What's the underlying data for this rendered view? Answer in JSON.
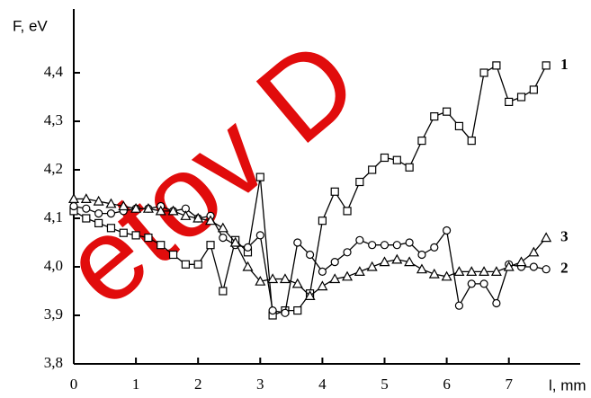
{
  "chart_data": {
    "type": "line",
    "y_label": "F, eV",
    "x_label": "l, mm",
    "watermark": "etov D",
    "x": [
      0,
      0.2,
      0.4,
      0.6,
      0.8,
      1,
      1.2,
      1.4,
      1.6,
      1.8,
      2,
      2.2,
      2.4,
      2.6,
      2.8,
      3,
      3.2,
      3.4,
      3.6,
      3.8,
      4,
      4.2,
      4.4,
      4.6,
      4.8,
      5,
      5.2,
      5.4,
      5.6,
      5.8,
      6,
      6.2,
      6.4,
      6.6,
      6.8,
      7,
      7.2,
      7.4,
      7.6
    ],
    "series": [
      {
        "name": "1",
        "color": "#000000",
        "marker": "square",
        "values": [
          4.115,
          4.1,
          4.09,
          4.08,
          4.07,
          4.065,
          4.06,
          4.045,
          4.025,
          4.005,
          4.005,
          4.045,
          3.95,
          4.055,
          4.03,
          4.185,
          3.9,
          3.91,
          3.91,
          3.945,
          4.095,
          4.155,
          4.115,
          4.175,
          4.2,
          4.225,
          4.22,
          4.205,
          4.26,
          4.31,
          4.32,
          4.29,
          4.26,
          4.4,
          4.415,
          4.34,
          4.35,
          4.365,
          4.415
        ]
      },
      {
        "name": "2",
        "color": "#000000",
        "marker": "circle",
        "values": [
          4.125,
          4.12,
          4.11,
          4.11,
          4.115,
          4.12,
          4.12,
          4.125,
          4.115,
          4.12,
          4.1,
          4.105,
          4.06,
          4.045,
          4.04,
          4.065,
          3.91,
          3.905,
          4.05,
          4.025,
          3.99,
          4.01,
          4.03,
          4.055,
          4.045,
          4.045,
          4.045,
          4.05,
          4.025,
          4.04,
          4.075,
          3.92,
          3.965,
          3.965,
          3.925,
          4.005,
          4.0,
          4.0,
          3.995
        ]
      },
      {
        "name": "3",
        "color": "#000000",
        "marker": "triangle",
        "values": [
          4.14,
          4.14,
          4.135,
          4.13,
          4.125,
          4.12,
          4.12,
          4.115,
          4.115,
          4.105,
          4.1,
          4.095,
          4.08,
          4.05,
          4.0,
          3.97,
          3.975,
          3.975,
          3.965,
          3.94,
          3.96,
          3.975,
          3.98,
          3.99,
          4.0,
          4.01,
          4.015,
          4.01,
          3.995,
          3.985,
          3.98,
          3.99,
          3.99,
          3.99,
          3.99,
          4.0,
          4.01,
          4.03,
          4.06
        ]
      }
    ],
    "xlim": [
      0,
      7.9
    ],
    "xticks": [
      0,
      1,
      2,
      3,
      4,
      5,
      6,
      7
    ],
    "ylim": [
      3.8,
      4.5
    ],
    "yticks": [
      {
        "value": 3.8,
        "label": "3,8"
      },
      {
        "value": 3.9,
        "label": "3,9"
      },
      {
        "value": 4.0,
        "label": "4,0"
      },
      {
        "value": 4.1,
        "label": "4,1"
      },
      {
        "value": 4.2,
        "label": "4,2"
      },
      {
        "value": 4.3,
        "label": "4,3"
      },
      {
        "value": 4.4,
        "label": "4,4"
      }
    ]
  }
}
